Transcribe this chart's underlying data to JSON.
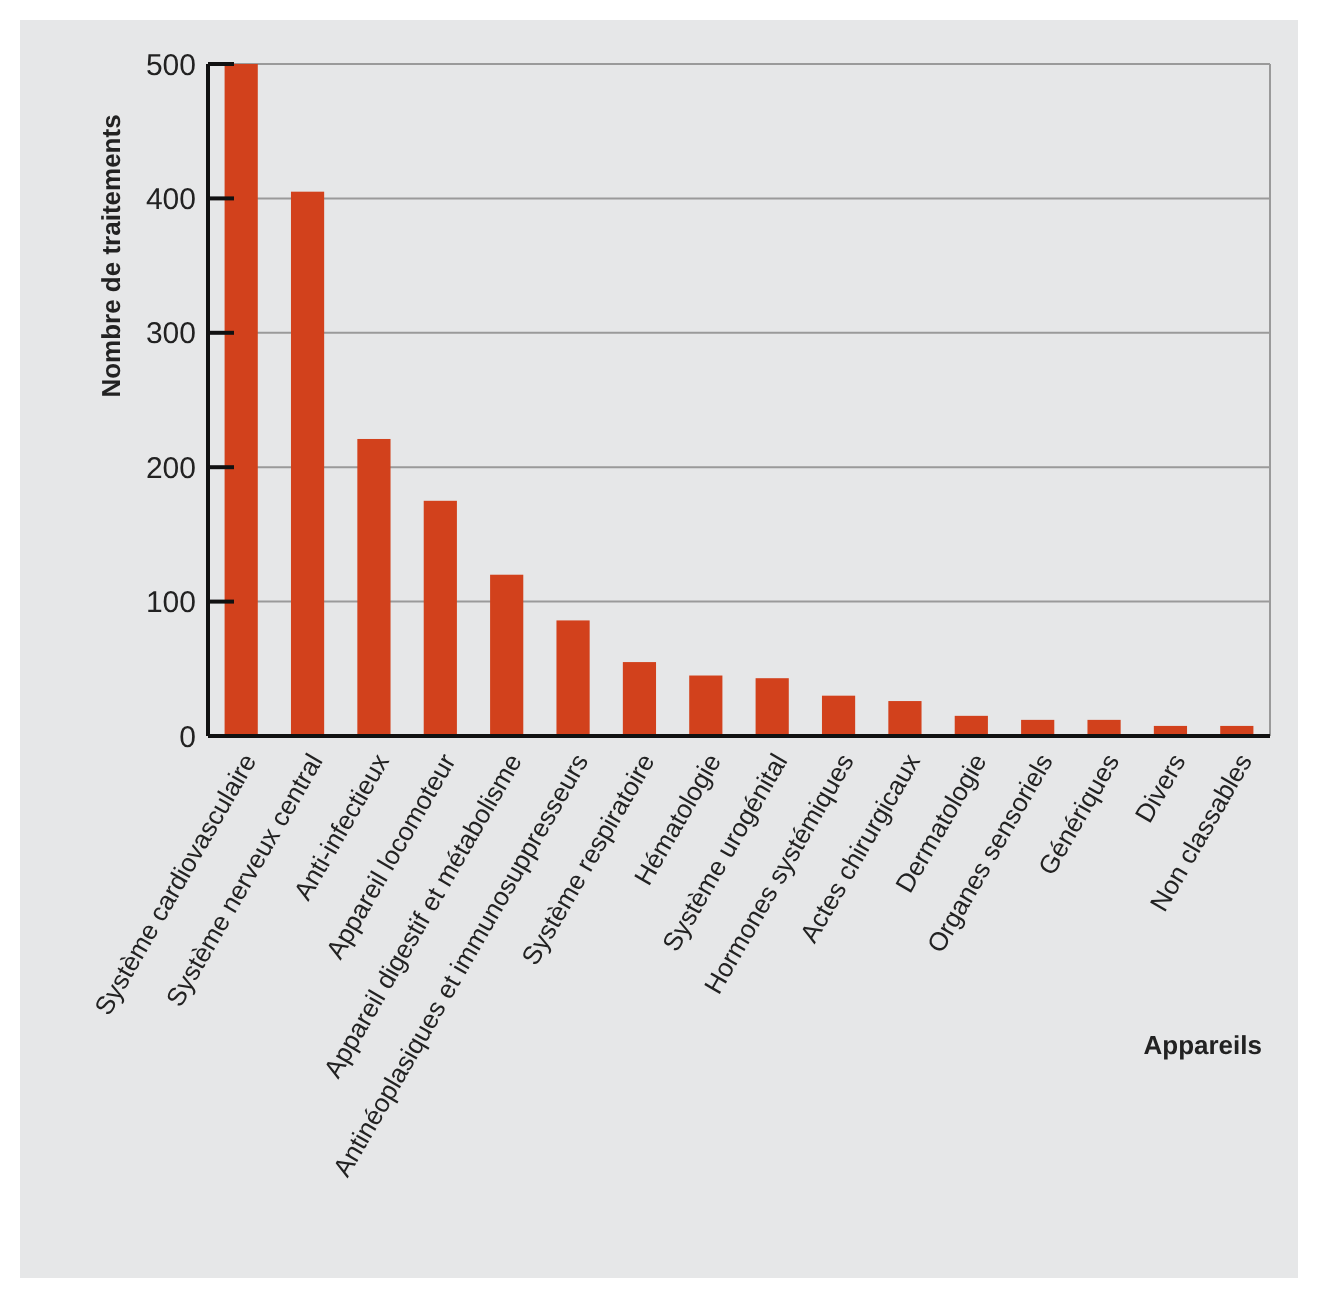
{
  "chart_data": {
    "type": "bar",
    "xlabel": "Appareils",
    "ylabel": "Nombre de traitements",
    "categories": [
      "Système cardiovasculaire",
      "Système nerveux central",
      "Anti-infectieux",
      "Appareil locomoteur",
      "Appareil digestif et métabolisme",
      "Antinéoplasiques et immunosuppresseurs",
      "Système respiratoire",
      "Hématologie",
      "Système urogénital",
      "Hormones systémiques",
      "Actes chirurgicaux",
      "Dermatologie",
      "Organes sensoriels",
      "Génériques",
      "Divers",
      "Non classables"
    ],
    "values": [
      500,
      405,
      221,
      175,
      120,
      86,
      55,
      45,
      43,
      30,
      26,
      15,
      12,
      12,
      7.5,
      7.5
    ],
    "color": "#d2411c",
    "ylim": [
      0,
      500
    ],
    "yticks": [
      0,
      100,
      200,
      300,
      400,
      500
    ],
    "grid": "y"
  }
}
